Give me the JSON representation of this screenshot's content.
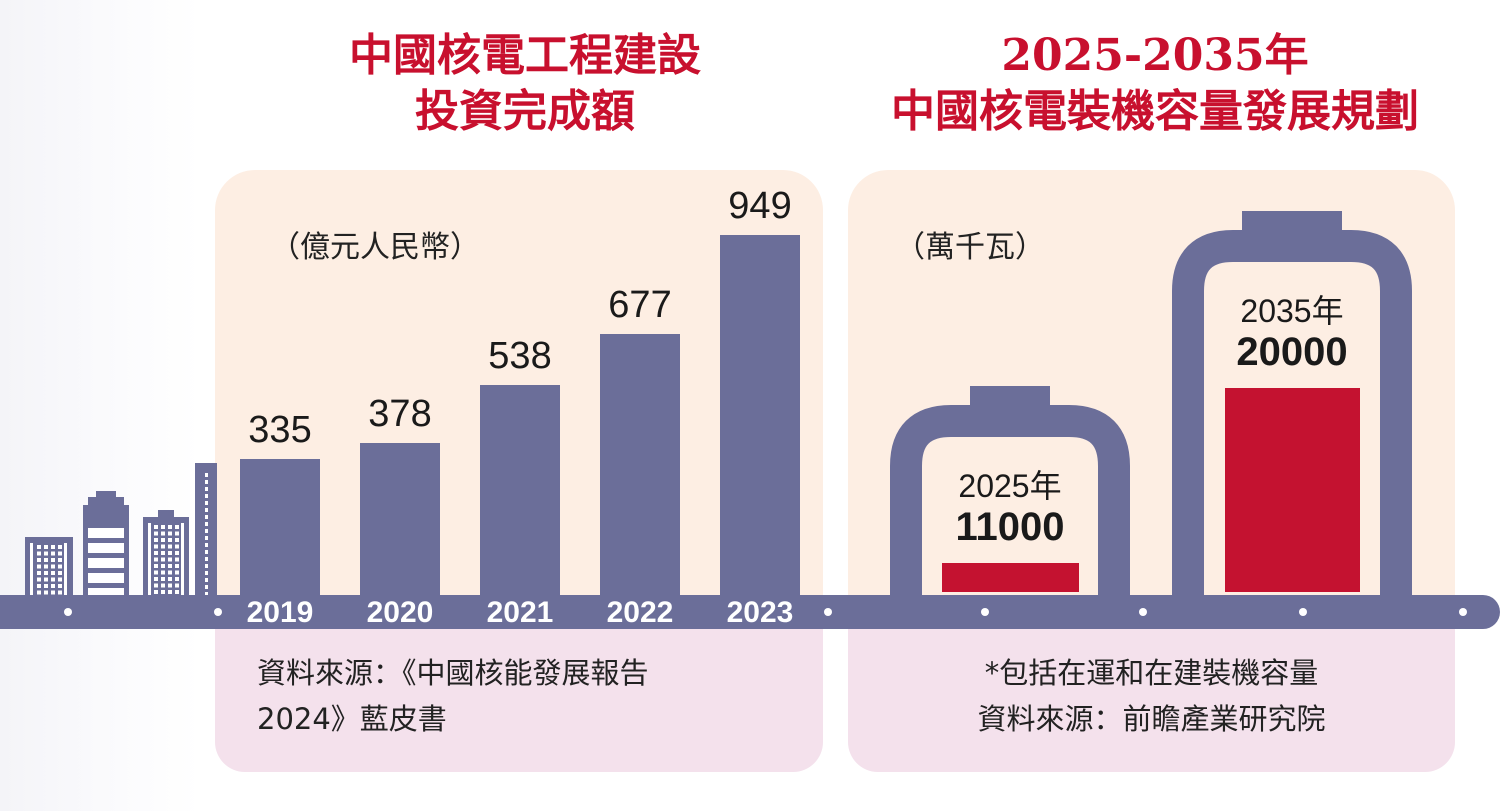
{
  "chart_data": [
    {
      "type": "bar",
      "title": "中國核電工程建設投資完成額",
      "title_lines": [
        "中國核電工程建設",
        "投資完成額"
      ],
      "ylabel": "（億元人民幣）",
      "categories": [
        "2019",
        "2020",
        "2021",
        "2022",
        "2023"
      ],
      "values": [
        335,
        378,
        538,
        677,
        949
      ],
      "source_lines": [
        "資料來源：《中國核能發展報告",
        "2024》藍皮書"
      ],
      "colors": {
        "bar": "#6b6e99",
        "panel": "#fdeee3"
      }
    },
    {
      "type": "bar",
      "title": "2025-2035年中國核電裝機容量發展規劃",
      "title_lines": [
        "2025-2035年",
        "中國核電裝機容量發展規劃"
      ],
      "ylabel": "（萬千瓦）",
      "categories": [
        "2025年",
        "2035年"
      ],
      "values": [
        11000,
        20000
      ],
      "note_lines": [
        "*包括在運和在建裝機容量",
        "資料來源：前瞻產業研究院"
      ],
      "colors": {
        "fill": "#c41230",
        "battery": "#6b6e99"
      }
    }
  ],
  "colors": {
    "title": "#c8102e",
    "conveyor": "#6b6e99",
    "footer": "#f4e1ec"
  },
  "icons": [
    "city-skyline-icon",
    "battery-icon"
  ]
}
